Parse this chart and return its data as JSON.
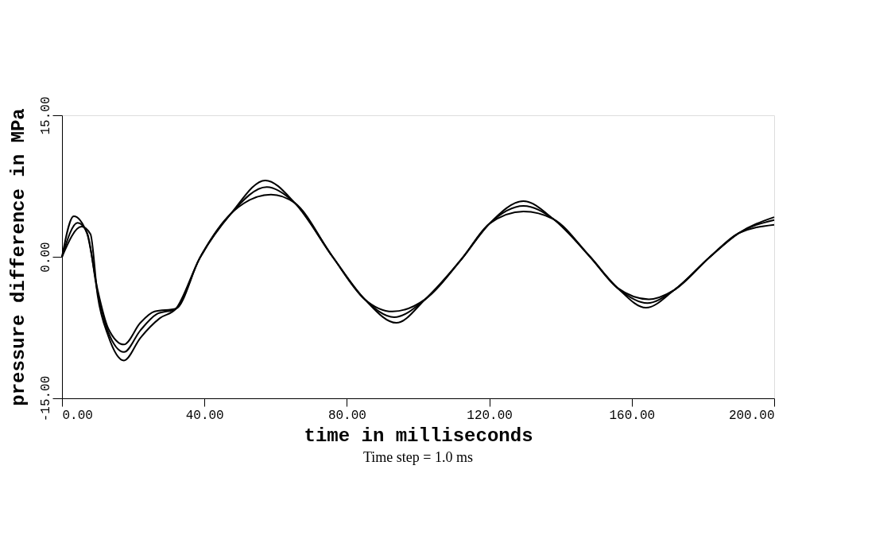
{
  "chart_data": {
    "type": "line",
    "xlabel": "time in milliseconds",
    "ylabel": "pressure difference in MPa",
    "annotations": [
      "Time step = 1.0 ms"
    ],
    "xlim": [
      0,
      200
    ],
    "ylim": [
      -15,
      15
    ],
    "xticks": [
      {
        "value": 0,
        "label": "0.00"
      },
      {
        "value": 40,
        "label": "40.00"
      },
      {
        "value": 80,
        "label": "80.00"
      },
      {
        "value": 120,
        "label": "120.00"
      },
      {
        "value": 160,
        "label": "160.00"
      },
      {
        "value": 200,
        "label": "200.00"
      }
    ],
    "yticks": [
      {
        "value": -15,
        "label": "-15.00"
      },
      {
        "value": 0,
        "label": "0.00"
      },
      {
        "value": 15,
        "label": "15.00"
      }
    ],
    "grid": false,
    "legend": false,
    "marker": "none",
    "line_style": "solid",
    "series": [
      {
        "color": "#000000",
        "x": [
          0,
          3.3,
          7,
          10,
          13,
          17.4,
          22,
          26,
          32,
          38.6,
          47.5,
          57.1,
          65.4,
          76,
          85,
          92.8,
          102,
          112.3,
          120,
          129.6,
          138,
          148.3,
          156,
          164.8,
          172,
          182,
          190,
          200
        ],
        "values": [
          0,
          4.3,
          2.5,
          -3.5,
          -7.6,
          -9.3,
          -7.0,
          -5.8,
          -5.5,
          -0.2,
          4.6,
          8.1,
          5.7,
          0,
          -4.5,
          -5.8,
          -4.5,
          -0.2,
          3.5,
          5.9,
          4.0,
          0,
          -3.3,
          -4.5,
          -3.5,
          0,
          2.5,
          4.2
        ]
      },
      {
        "color": "#000000",
        "x": [
          0,
          4.4,
          7,
          10,
          13,
          17.4,
          22,
          26.5,
          32,
          38.6,
          47.5,
          57.5,
          65.4,
          76,
          85,
          93.3,
          102,
          112.3,
          120,
          129.6,
          138,
          148.3,
          156,
          164.4,
          172,
          182,
          190,
          200
        ],
        "values": [
          0,
          3.6,
          2.6,
          -3.8,
          -8.0,
          -10.1,
          -7.8,
          -6.1,
          -5.5,
          -0.2,
          4.6,
          7.4,
          5.7,
          0,
          -4.5,
          -6.4,
          -4.5,
          -0.2,
          3.5,
          5.4,
          4.0,
          0,
          -3.3,
          -4.9,
          -3.5,
          0,
          2.5,
          3.9
        ]
      },
      {
        "color": "#000000",
        "x": [
          0,
          5.5,
          8,
          10,
          13,
          17.4,
          22,
          27.5,
          32,
          38.6,
          47.5,
          58.7,
          65.4,
          76,
          85,
          93.9,
          102,
          112.3,
          120,
          129.6,
          138,
          148.3,
          156,
          164,
          172,
          182,
          190,
          200
        ],
        "values": [
          0,
          3.2,
          2.4,
          -4.1,
          -8.4,
          -11.0,
          -8.6,
          -6.5,
          -5.5,
          -0.2,
          4.6,
          6.6,
          5.7,
          0,
          -4.5,
          -7.0,
          -4.5,
          -0.2,
          3.5,
          4.8,
          4.0,
          0,
          -3.3,
          -5.4,
          -3.5,
          0,
          2.5,
          3.4
        ]
      }
    ]
  }
}
